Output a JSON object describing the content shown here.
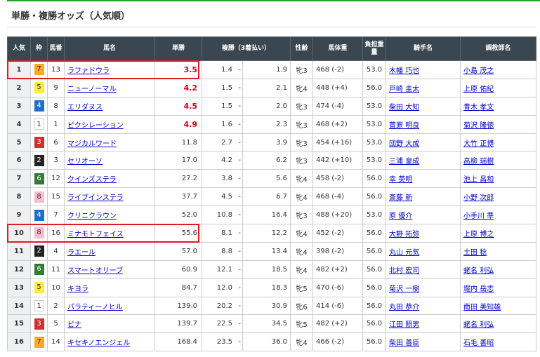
{
  "title": "単勝・複勝オッズ（人気順）",
  "headers": {
    "pop": "人気",
    "waku": "枠",
    "num": "馬番",
    "name": "馬名",
    "win": "単勝",
    "place": "複勝（3着払い）",
    "sexage": "性齢",
    "weight": "馬体重",
    "load": "負担重量",
    "jockey": "騎手名",
    "trainer": "調教師名"
  },
  "waku_colors": {
    "1": [
      "#ffffff",
      "#333333"
    ],
    "2": [
      "#222222",
      "#ffffff"
    ],
    "3": [
      "#d32f2f",
      "#ffffff"
    ],
    "4": [
      "#1e6fd0",
      "#ffffff"
    ],
    "5": [
      "#ffeb3b",
      "#333333"
    ],
    "6": [
      "#2e7d32",
      "#ffffff"
    ],
    "7": [
      "#ffa726",
      "#333333"
    ],
    "8": [
      "#f8bbd0",
      "#333333"
    ]
  },
  "highlight_color": "#e01b24",
  "rows": [
    {
      "pop": "1",
      "waku": "7",
      "num": "13",
      "name": "ラファドウラ",
      "win": "3.5",
      "hot": true,
      "pmin": "1.4",
      "pmax": "1.9",
      "sexage": "牝3",
      "weight": "468 (-2)",
      "load": "53.0",
      "jockey": "木幡 巧也",
      "trainer": "小島 茂之",
      "boxed": true
    },
    {
      "pop": "2",
      "waku": "5",
      "num": "9",
      "name": "ニューノーマル",
      "win": "4.2",
      "hot": true,
      "pmin": "1.5",
      "pmax": "2.1",
      "sexage": "牝4",
      "weight": "448 (+4)",
      "load": "56.0",
      "jockey": "戸崎 圭太",
      "trainer": "上原 佑紀"
    },
    {
      "pop": "3",
      "waku": "4",
      "num": "8",
      "name": "エリダヌス",
      "win": "4.5",
      "hot": true,
      "pmin": "1.5",
      "pmax": "2.0",
      "sexage": "牝3",
      "weight": "474 (-4)",
      "load": "53.0",
      "jockey": "柴田 大知",
      "trainer": "青木 孝文"
    },
    {
      "pop": "4",
      "waku": "1",
      "num": "1",
      "name": "ピクシレーション",
      "win": "4.9",
      "hot": true,
      "pmin": "1.6",
      "pmax": "2.3",
      "sexage": "牝3",
      "weight": "468 (+2)",
      "load": "53.0",
      "jockey": "菅原 明良",
      "trainer": "菊沢 隆徳"
    },
    {
      "pop": "5",
      "waku": "3",
      "num": "6",
      "name": "マジカルワード",
      "win": "11.8",
      "pmin": "2.7",
      "pmax": "3.9",
      "sexage": "牝3",
      "weight": "454 (+16)",
      "load": "53.0",
      "jockey": "団野 大成",
      "trainer": "大竹 正博"
    },
    {
      "pop": "6",
      "waku": "2",
      "num": "3",
      "name": "セリオーソ",
      "win": "17.0",
      "pmin": "4.2",
      "pmax": "6.2",
      "sexage": "牝3",
      "weight": "442 (+10)",
      "load": "53.0",
      "jockey": "三浦 皇成",
      "trainer": "高柳 瑞樹"
    },
    {
      "pop": "7",
      "waku": "6",
      "num": "12",
      "name": "クインズステラ",
      "win": "27.2",
      "pmin": "3.8",
      "pmax": "5.6",
      "sexage": "牝4",
      "weight": "458 (-2)",
      "load": "56.0",
      "jockey": "幸 英明",
      "trainer": "池上 昌和"
    },
    {
      "pop": "8",
      "waku": "8",
      "num": "15",
      "name": "ライブインステラ",
      "win": "37.7",
      "pmin": "4.5",
      "pmax": "6.7",
      "sexage": "牝4",
      "weight": "468 (-4)",
      "load": "56.0",
      "jockey": "斎藤 新",
      "trainer": "小野 次郎"
    },
    {
      "pop": "9",
      "waku": "4",
      "num": "7",
      "name": "クリニクラウン",
      "win": "52.0",
      "pmin": "10.8",
      "pmax": "16.4",
      "sexage": "牝3",
      "weight": "488 (+20)",
      "load": "53.0",
      "jockey": "原 優介",
      "trainer": "小手川 準"
    },
    {
      "pop": "10",
      "waku": "8",
      "num": "16",
      "name": "ミナモトフェイス",
      "win": "55.6",
      "pmin": "8.1",
      "pmax": "12.2",
      "sexage": "牝4",
      "weight": "452 (-2)",
      "load": "56.0",
      "jockey": "大野 拓弥",
      "trainer": "上原 博之",
      "boxed": true
    },
    {
      "pop": "11",
      "waku": "2",
      "num": "4",
      "name": "ラエール",
      "win": "57.0",
      "pmin": "8.8",
      "pmax": "13.4",
      "sexage": "牝4",
      "weight": "398 (-2)",
      "load": "56.0",
      "jockey": "丸山 元気",
      "trainer": "土田 稔"
    },
    {
      "pop": "12",
      "waku": "6",
      "num": "11",
      "name": "スマートオリーブ",
      "win": "60.9",
      "pmin": "12.1",
      "pmax": "18.5",
      "sexage": "牝4",
      "weight": "482 (+2)",
      "load": "56.0",
      "jockey": "北村 宏司",
      "trainer": "蛯名 利弘"
    },
    {
      "pop": "13",
      "waku": "5",
      "num": "10",
      "name": "キヨラ",
      "win": "84.7",
      "pmin": "12.0",
      "pmax": "18.3",
      "sexage": "牝5",
      "weight": "470 (-6)",
      "load": "56.0",
      "jockey": "菊沢 一樹",
      "trainer": "堀内 岳志"
    },
    {
      "pop": "14",
      "waku": "1",
      "num": "2",
      "name": "パラティーノヒル",
      "win": "139.0",
      "pmin": "20.2",
      "pmax": "30.9",
      "sexage": "牝6",
      "weight": "414 (-6)",
      "load": "56.0",
      "jockey": "丸田 恭介",
      "trainer": "南田 美知雄"
    },
    {
      "pop": "15",
      "waku": "3",
      "num": "5",
      "name": "ピナ",
      "win": "139.7",
      "pmin": "22.5",
      "pmax": "34.5",
      "sexage": "牝5",
      "weight": "482 (+2)",
      "load": "56.0",
      "jockey": "江田 照男",
      "trainer": "蛯名 利弘"
    },
    {
      "pop": "16",
      "waku": "7",
      "num": "14",
      "name": "キセキノエンジェル",
      "win": "168.4",
      "pmin": "23.5",
      "pmax": "36.0",
      "sexage": "牝4",
      "weight": "466 (-2)",
      "load": "56.0",
      "jockey": "柴田 善臣",
      "trainer": "石毛 善昭"
    }
  ]
}
